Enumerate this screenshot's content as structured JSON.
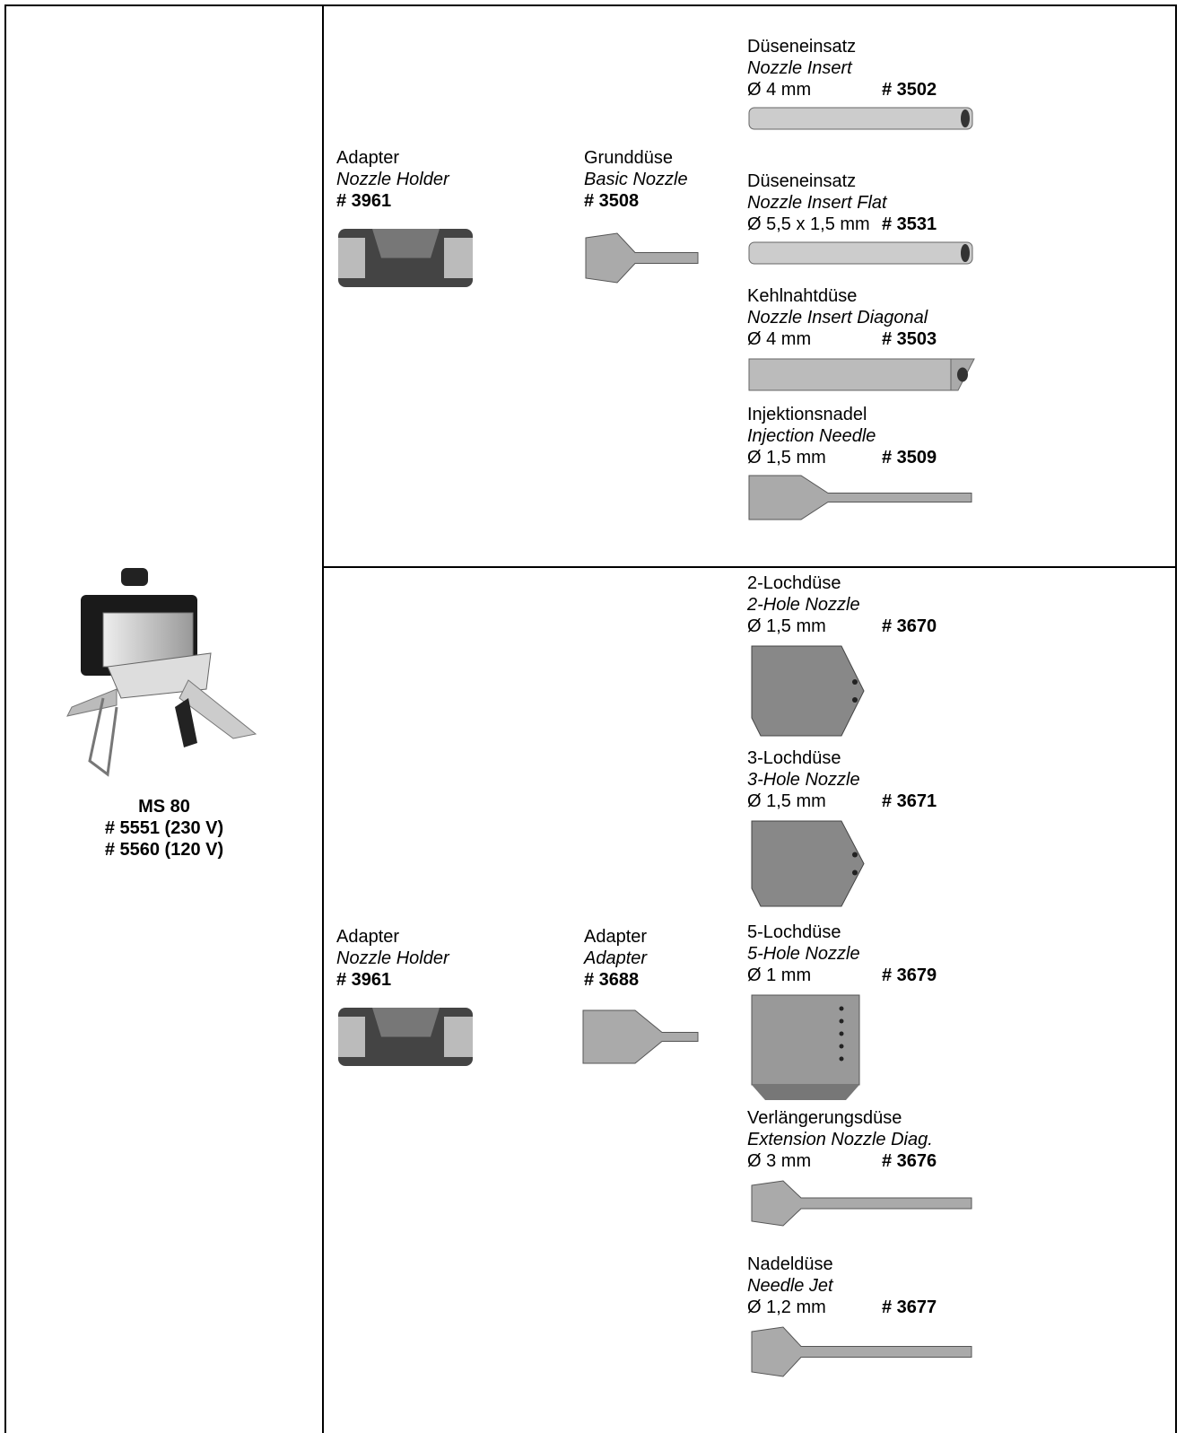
{
  "device": {
    "name": "MS 80",
    "codes": [
      "# 5551 (230 V)",
      "# 5560 (120 V)"
    ]
  },
  "sections": [
    {
      "adapter": {
        "de": "Adapter",
        "en": "Nozzle Holder",
        "code": "# 3961"
      },
      "base": {
        "de": "Grunddüse",
        "en": "Basic Nozzle",
        "code": "# 3508"
      },
      "nozzles": [
        {
          "de": "Düseneinsatz",
          "en": "Nozzle Insert",
          "size": "Ø 4 mm",
          "code": "# 3502"
        },
        {
          "de": "Düseneinsatz",
          "en": "Nozzle Insert Flat",
          "size": "Ø 5,5 x 1,5 mm",
          "code": "# 3531"
        },
        {
          "de": "Kehlnahtdüse",
          "en": "Nozzle Insert Diagonal",
          "size": "Ø  4 mm",
          "code": "# 3503"
        },
        {
          "de": "Injektionsnadel",
          "en": "Injection Needle",
          "size": "Ø 1,5 mm",
          "code": "# 3509"
        }
      ]
    },
    {
      "adapter": {
        "de": "Adapter",
        "en": "Nozzle Holder",
        "code": "# 3961"
      },
      "base": {
        "de": "Adapter",
        "en": "Adapter",
        "code": "# 3688"
      },
      "nozzles": [
        {
          "de": "2-Lochdüse",
          "en": "2-Hole Nozzle",
          "size": "Ø 1,5 mm",
          "code": "# 3670"
        },
        {
          "de": "3-Lochdüse",
          "en": "3-Hole Nozzle",
          "size": "Ø 1,5 mm",
          "code": "# 3671"
        },
        {
          "de": "5-Lochdüse",
          "en": "5-Hole Nozzle",
          "size": "Ø 1 mm",
          "code": "# 3679"
        },
        {
          "de": "Verlängerungsdüse",
          "en": "Extension Nozzle Diag.",
          "size": "Ø 3 mm",
          "code": "# 3676"
        },
        {
          "de": "Nadeldüse",
          "en": "Needle Jet",
          "size": "Ø 1,2 mm",
          "code": "# 3677"
        }
      ]
    }
  ]
}
